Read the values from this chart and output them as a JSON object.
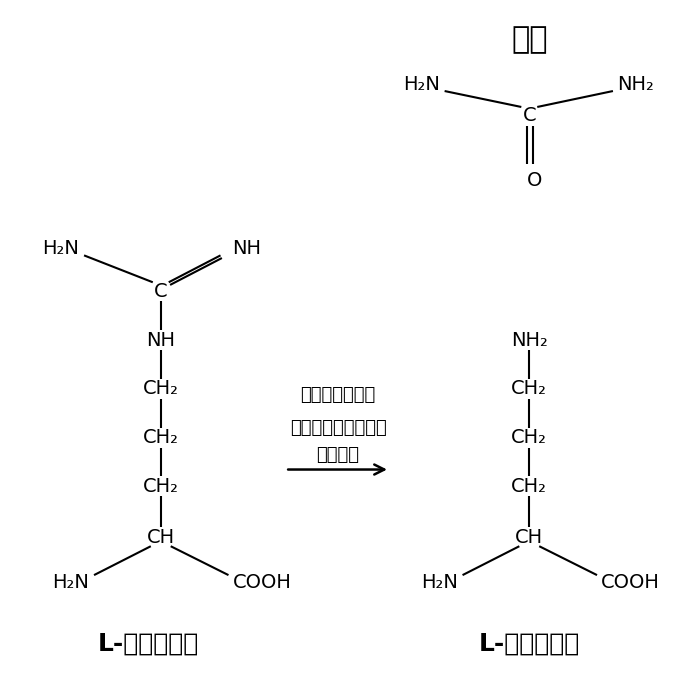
{
  "bg_color": "#ffffff",
  "figsize": [
    6.98,
    7.0
  ],
  "dpi": 100,
  "title_urea": "尿素",
  "label_arginine": "L-アルギニン",
  "label_ornithine": "L-オルニチン",
  "reaction_line1": "肝臓の尿素回路",
  "reaction_line2": "アルギナーゼによる",
  "reaction_line3": "加水分解"
}
